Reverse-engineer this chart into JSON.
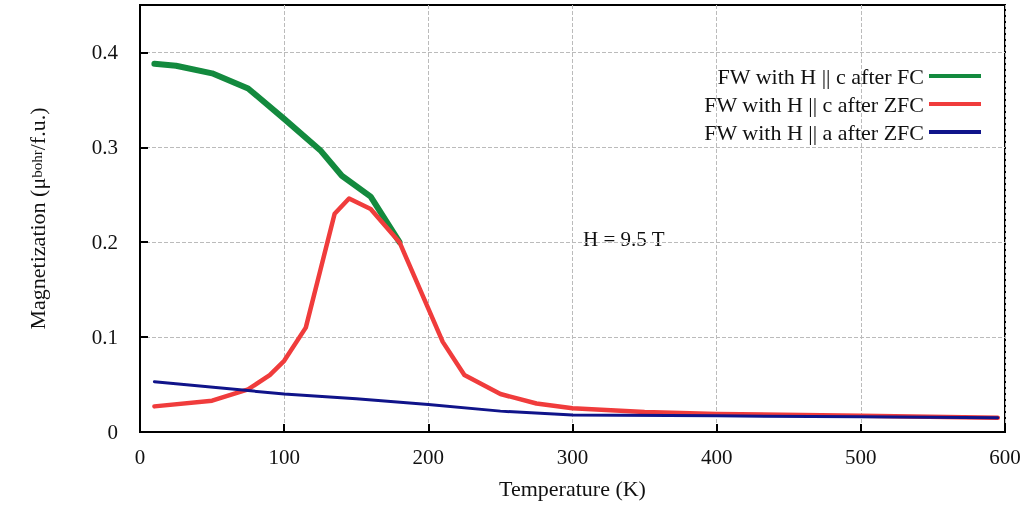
{
  "chart_data": {
    "type": "line",
    "xlabel": "Temperature (K)",
    "ylabel": "Magnetization (μ$_{bohr}$/f.u.)",
    "xlim": [
      0,
      600
    ],
    "xticks": [
      0,
      100,
      200,
      300,
      400,
      500,
      600
    ],
    "ylim": [
      0,
      0.45
    ],
    "yticks": [
      0,
      0.1,
      0.2,
      0.3,
      0.4
    ],
    "grid": true,
    "legend": "top right",
    "marker": "none",
    "line_style": "solid",
    "annotations": [
      "H = 9.5 T"
    ],
    "series": [
      {
        "name": "FW with H || c after FC",
        "color": "#138a3e",
        "x": [
          10,
          25,
          50,
          75,
          100,
          125,
          140,
          160,
          180
        ],
        "values": [
          0.388,
          0.386,
          0.378,
          0.362,
          0.33,
          0.297,
          0.27,
          0.248,
          0.2
        ]
      },
      {
        "name": "FW with H || c after ZFC",
        "color": "#f03c3c",
        "x": [
          10,
          50,
          75,
          90,
          100,
          115,
          125,
          135,
          145,
          160,
          180,
          190,
          200,
          210,
          225,
          250,
          275,
          300,
          350,
          400,
          500,
          595
        ],
        "values": [
          0.027,
          0.033,
          0.045,
          0.06,
          0.075,
          0.11,
          0.17,
          0.23,
          0.246,
          0.235,
          0.2,
          0.165,
          0.13,
          0.095,
          0.06,
          0.04,
          0.03,
          0.025,
          0.021,
          0.019,
          0.017,
          0.015
        ]
      },
      {
        "name": "FW with H || a after ZFC",
        "color": "#10148a",
        "x": [
          10,
          100,
          150,
          200,
          250,
          300,
          400,
          500,
          595
        ],
        "values": [
          0.053,
          0.04,
          0.035,
          0.029,
          0.022,
          0.018,
          0.017,
          0.016,
          0.015
        ]
      }
    ]
  }
}
